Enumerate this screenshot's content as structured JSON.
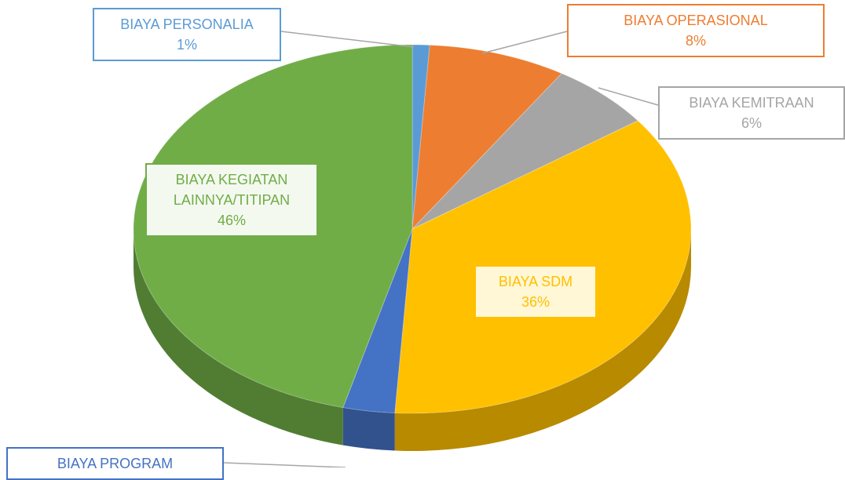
{
  "chart_data": {
    "type": "pie3d",
    "categories": [
      "BIAYA PERSONALIA",
      "BIAYA OPERASIONAL",
      "BIAYA KEMITRAAN",
      "BIAYA SDM",
      "BIAYA PROGRAM",
      "BIAYA KEGIATAN LAINNYA/TITIPAN"
    ],
    "values": [
      1,
      8,
      6,
      36,
      3,
      46
    ],
    "value_labels": [
      "1%",
      "8%",
      "6%",
      "36%",
      null,
      "46%"
    ],
    "colors": [
      "#5b9bd5",
      "#ed7d31",
      "#a5a5a5",
      "#ffc000",
      "#4472c4",
      "#70ad47"
    ]
  }
}
